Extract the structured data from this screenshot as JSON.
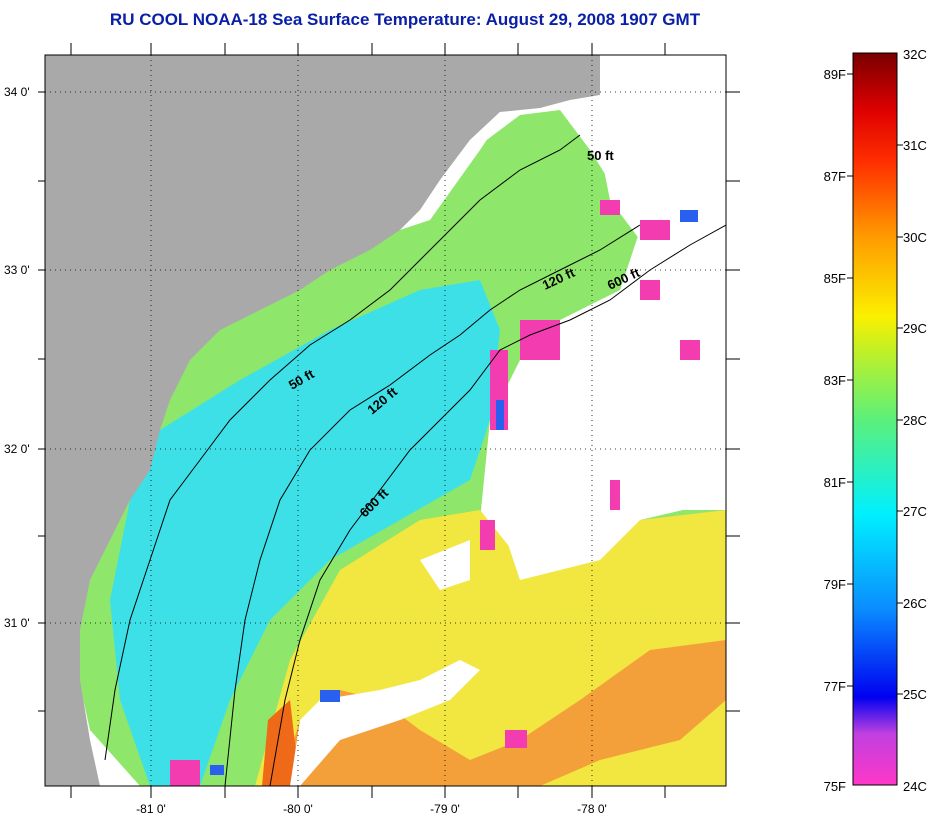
{
  "title": "RU COOL  NOAA-18  Sea Surface Temperature:  August 29, 2008 1907 GMT",
  "map": {
    "lat_ticks": [
      "34 0'",
      "33 0'",
      "32 0'",
      "31 0'"
    ],
    "lon_ticks": [
      "-81 0'",
      "-80 0'",
      "-79 0'",
      "-78 0'"
    ],
    "contour_labels": {
      "c50_north": "50 ft",
      "c120_north": "120 ft",
      "c600_north": "600 ft",
      "c50_mid": "50 ft",
      "c120_mid": "120 ft",
      "c600_mid": "600 ft"
    },
    "colors": {
      "land": "#a9a9a9",
      "cloud": "#ffffff",
      "cool_water": "#3ee0e8",
      "mid_water": "#8ee66a",
      "warm_water": "#f2e640",
      "hot_water": "#f08a20",
      "coldest": "#f23cb0"
    }
  },
  "colorbar": {
    "celsius_labels": [
      "32C",
      "31C",
      "30C",
      "29C",
      "28C",
      "27C",
      "26C",
      "25C",
      "24C"
    ],
    "fahrenheit_labels": [
      "89F",
      "87F",
      "85F",
      "83F",
      "81F",
      "79F",
      "77F",
      "75F"
    ],
    "range_c": [
      24,
      32
    ],
    "range_f": [
      75,
      89
    ]
  }
}
